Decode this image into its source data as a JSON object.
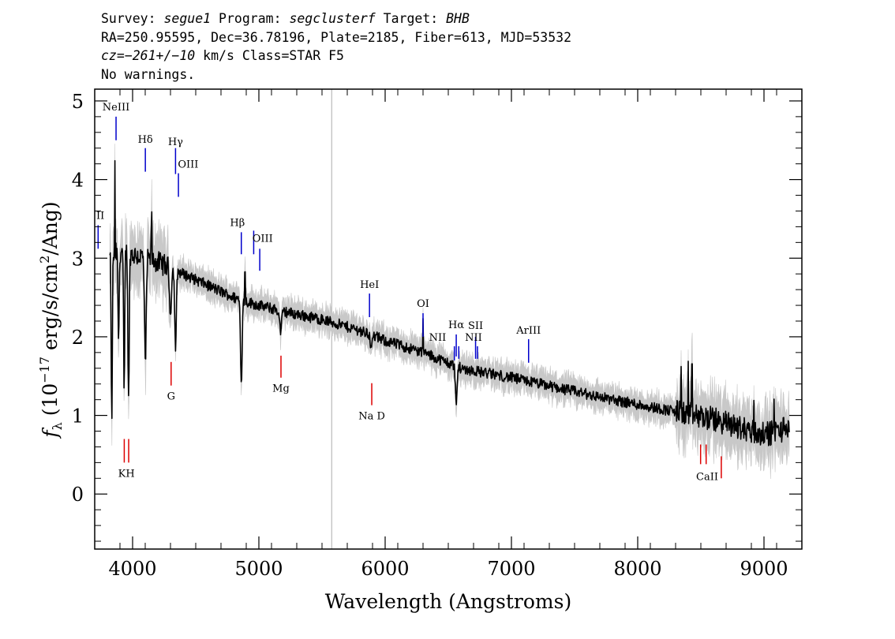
{
  "header": {
    "survey_label": "Survey: ",
    "survey": "segue1",
    "program_label": " Program: ",
    "program": "segclusterf",
    "target_label": " Target: ",
    "target": "BHB",
    "line2": "RA=250.95595, Dec=36.78196, Plate=2185, Fiber=613, MJD=53532",
    "cz_label": "cz=",
    "cz_value": "−261+/−10",
    "cz_rest": " km/s Class=STAR F5",
    "warnings": "No warnings."
  },
  "colors": {
    "flux": "#000000",
    "error_band": "#c8c8c8",
    "emission_marker": "#0000cc",
    "absorption_marker": "#dd0000",
    "sky_line": "#c0c0c0"
  },
  "chart_data": {
    "type": "line",
    "xlabel": "Wavelength (Angstroms)",
    "ylabel_main": "f",
    "ylabel_sub": "λ",
    "ylabel_rest": " (10",
    "ylabel_exp": "−17",
    "ylabel_tail": " erg/s/cm",
    "ylabel_exp2": "2",
    "ylabel_end": "/Ang)",
    "xlim": [
      3700,
      9300
    ],
    "ylim": [
      -0.7,
      5.15
    ],
    "xticks": [
      4000,
      5000,
      6000,
      7000,
      8000,
      9000
    ],
    "xtick_labels": [
      "4000",
      "5000",
      "6000",
      "7000",
      "8000",
      "9000"
    ],
    "yticks": [
      0,
      1,
      2,
      3,
      4,
      5
    ],
    "ytick_labels": [
      "0",
      "1",
      "2",
      "3",
      "4",
      "5"
    ],
    "sky_line_x": 5577,
    "continuum": [
      {
        "x": 3820,
        "y": 3.0
      },
      {
        "x": 3900,
        "y": 3.1
      },
      {
        "x": 4000,
        "y": 3.05
      },
      {
        "x": 4200,
        "y": 2.95
      },
      {
        "x": 4400,
        "y": 2.8
      },
      {
        "x": 4600,
        "y": 2.65
      },
      {
        "x": 4800,
        "y": 2.5
      },
      {
        "x": 5000,
        "y": 2.4
      },
      {
        "x": 5200,
        "y": 2.32
      },
      {
        "x": 5500,
        "y": 2.22
      },
      {
        "x": 5800,
        "y": 2.08
      },
      {
        "x": 6000,
        "y": 1.95
      },
      {
        "x": 6300,
        "y": 1.8
      },
      {
        "x": 6600,
        "y": 1.6
      },
      {
        "x": 7000,
        "y": 1.48
      },
      {
        "x": 7400,
        "y": 1.34
      },
      {
        "x": 7800,
        "y": 1.2
      },
      {
        "x": 8200,
        "y": 1.08
      },
      {
        "x": 8600,
        "y": 0.95
      },
      {
        "x": 9000,
        "y": 0.75
      },
      {
        "x": 9200,
        "y": 0.85
      }
    ],
    "absorption_features": [
      {
        "x": 3835,
        "depth": 2.2,
        "width": 6
      },
      {
        "x": 3889,
        "depth": 1.1,
        "width": 7
      },
      {
        "x": 3933,
        "depth": 1.9,
        "width": 6
      },
      {
        "x": 3968,
        "depth": 1.9,
        "width": 7
      },
      {
        "x": 4101,
        "depth": 1.4,
        "width": 9
      },
      {
        "x": 4300,
        "depth": 0.6,
        "width": 10
      },
      {
        "x": 4340,
        "depth": 1.0,
        "width": 9
      },
      {
        "x": 4861,
        "depth": 1.05,
        "width": 9
      },
      {
        "x": 5172,
        "depth": 0.25,
        "width": 12
      },
      {
        "x": 5890,
        "depth": 0.2,
        "width": 8
      },
      {
        "x": 6563,
        "depth": 0.5,
        "width": 9
      }
    ],
    "emission_spikes": [
      {
        "x": 3860,
        "height": 1.1
      },
      {
        "x": 4150,
        "height": 0.5
      },
      {
        "x": 4890,
        "height": 0.4
      },
      {
        "x": 6300,
        "height": 0.5
      },
      {
        "x": 8345,
        "height": 0.7
      },
      {
        "x": 8400,
        "height": 0.6
      },
      {
        "x": 8430,
        "height": 0.5
      },
      {
        "x": 8920,
        "height": 0.5
      },
      {
        "x": 9080,
        "height": 0.5
      }
    ],
    "emission_lines": [
      {
        "label": "NeIII",
        "x": 3869,
        "y0": 4.5,
        "y1": 4.8
      },
      {
        "label": "Hδ",
        "x": 4101,
        "y0": 4.1,
        "y1": 4.4
      },
      {
        "label": "Hγ",
        "x": 4340,
        "y0": 4.07,
        "y1": 4.4
      },
      {
        "label": "OIII",
        "x": 4363,
        "y0": 3.78,
        "y1": 4.08
      },
      {
        "label": "II",
        "x": 3727,
        "y0": 3.12,
        "y1": 3.42
      },
      {
        "label": "Hβ",
        "x": 4861,
        "y0": 3.05,
        "y1": 3.33
      },
      {
        "label": "OIII",
        "x": 4959,
        "y0": 3.05,
        "y1": 3.35
      },
      {
        "label": "OIII",
        "x": 5007,
        "y0": 2.84,
        "y1": 3.12
      },
      {
        "label": "HeI",
        "x": 5876,
        "y0": 2.25,
        "y1": 2.55
      },
      {
        "label": "OI",
        "x": 6300,
        "y0": 2.0,
        "y1": 2.3
      },
      {
        "label": "NII",
        "x": 6548,
        "y0": 1.7,
        "y1": 1.88
      },
      {
        "label": "Hα",
        "x": 6563,
        "y0": 1.75,
        "y1": 2.03
      },
      {
        "label": "NII",
        "x": 6583,
        "y0": 1.72,
        "y1": 1.88
      },
      {
        "label": "SII",
        "x": 6716,
        "y0": 1.72,
        "y1": 2.0
      },
      {
        "label": "SII",
        "x": 6731,
        "y0": 1.72,
        "y1": 1.88
      },
      {
        "label": "ArIII",
        "x": 7136,
        "y0": 1.67,
        "y1": 1.97
      }
    ],
    "absorption_lines": [
      {
        "label": "K",
        "x": 3934,
        "y0": 0.4,
        "y1": 0.7
      },
      {
        "label": "H",
        "x": 3969,
        "y0": 0.4,
        "y1": 0.7
      },
      {
        "label": "G",
        "x": 4305,
        "y0": 1.38,
        "y1": 1.68
      },
      {
        "label": "Mg",
        "x": 5175,
        "y0": 1.48,
        "y1": 1.76
      },
      {
        "label": "Na D",
        "x": 5894,
        "y0": 1.13,
        "y1": 1.41
      },
      {
        "label": "CaII",
        "x": 8498,
        "y0": 0.38,
        "y1": 0.63
      },
      {
        "label": "CaII",
        "x": 8542,
        "y0": 0.38,
        "y1": 0.63
      },
      {
        "label": "CaII",
        "x": 8662,
        "y0": 0.2,
        "y1": 0.48
      }
    ],
    "labels": [
      {
        "text": "NeIII",
        "x": 3869,
        "y": 4.88
      },
      {
        "text": "Hδ",
        "x": 4101,
        "y": 4.47
      },
      {
        "text": "Hγ",
        "x": 4340,
        "y": 4.44
      },
      {
        "text": "OIII",
        "x": 4440,
        "y": 4.15
      },
      {
        "text": "II",
        "x": 3745,
        "y": 3.5
      },
      {
        "text": "Hβ",
        "x": 4830,
        "y": 3.41
      },
      {
        "text": "OIII",
        "x": 5030,
        "y": 3.21
      },
      {
        "text": "HeI",
        "x": 5876,
        "y": 2.62
      },
      {
        "text": "OI",
        "x": 6300,
        "y": 2.38
      },
      {
        "text": "Hα",
        "x": 6563,
        "y": 2.11
      },
      {
        "text": "SII",
        "x": 6716,
        "y": 2.1
      },
      {
        "text": "NII",
        "x": 6415,
        "y": 1.95
      },
      {
        "text": "NII",
        "x": 6700,
        "y": 1.95
      },
      {
        "text": "ArIII",
        "x": 7136,
        "y": 2.04
      },
      {
        "text": "G",
        "x": 4305,
        "y": 1.2
      },
      {
        "text": "Mg",
        "x": 5175,
        "y": 1.3
      },
      {
        "text": "Na  D",
        "x": 5894,
        "y": 0.95
      },
      {
        "text": "KH",
        "x": 3951,
        "y": 0.22
      },
      {
        "text": "CaII",
        "x": 8550,
        "y": 0.18
      }
    ]
  }
}
